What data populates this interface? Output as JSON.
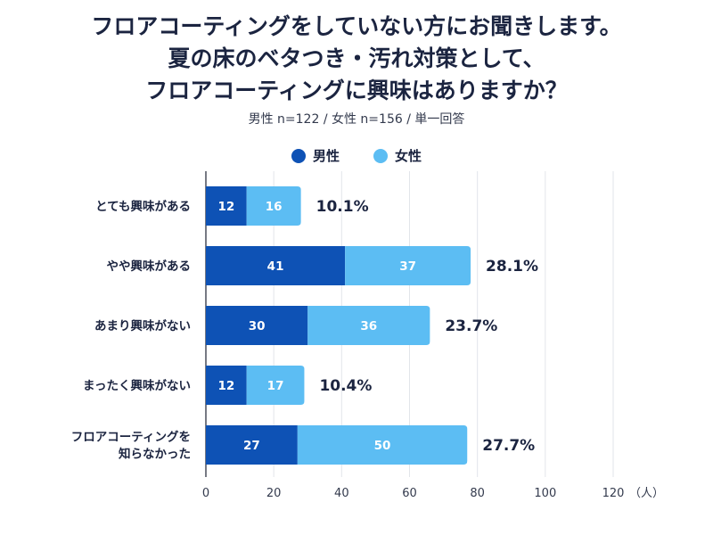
{
  "header": {
    "title_lines": [
      "フロアコーティングをしていない方にお聞きします。",
      "夏の床のベタつき・汚れ対策として、",
      "フロアコーティングに興味はありますか？"
    ],
    "subtitle": "男性 n=122 / 女性 n=156 / 単一回答"
  },
  "colors": {
    "male": "#0e52b5",
    "female": "#5cbdf3",
    "grid": "#e2e5ea",
    "axis": "#4a4f5c"
  },
  "chart_data": {
    "type": "bar",
    "orientation": "horizontal",
    "stacked": true,
    "categories": [
      [
        "とても興味がある"
      ],
      [
        "やや興味がある"
      ],
      [
        "あまり興味がない"
      ],
      [
        "まったく興味がない"
      ],
      [
        "フロアコーティングを",
        "知らなかった"
      ]
    ],
    "series": [
      {
        "name": "男性",
        "values": [
          12,
          41,
          30,
          12,
          27
        ]
      },
      {
        "name": "女性",
        "values": [
          16,
          37,
          36,
          17,
          50
        ]
      }
    ],
    "totals_pct": [
      "10.1%",
      "28.1%",
      "23.7%",
      "10.4%",
      "27.7%"
    ],
    "xlim": [
      0,
      120
    ],
    "xticks": [
      "0",
      "20",
      "40",
      "60",
      "80",
      "100",
      "120"
    ],
    "x_unit": "（人）",
    "grid": true,
    "legend_position": "top-center"
  }
}
